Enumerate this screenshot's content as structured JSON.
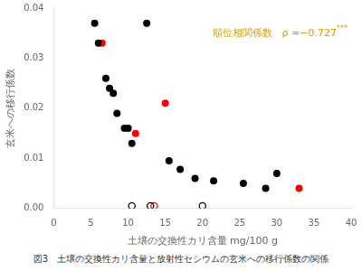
{
  "chart_data": {
    "type": "scatter",
    "xlabel": "土壌の交換性カリ含量 mg/100 g",
    "ylabel": "玄米への移行係数",
    "caption": "図3　土壌の交換性カリ含量と放射性セシウムの玄米への移行係数の関係",
    "annotations": [
      {
        "text": "順位相関係数　ρ =−0.727",
        "superscript": "***",
        "color": "#d4a000"
      }
    ],
    "series": [
      {
        "color": "#000000",
        "marker": "circle",
        "x": [
          5.5,
          6.0,
          7.0,
          7.5,
          8.0,
          8.5,
          9.5,
          10.0,
          10.5,
          12.5,
          15.5,
          17.0,
          19.0,
          21.5,
          25.5,
          28.5,
          30.0
        ],
        "values": [
          0.037,
          0.033,
          0.026,
          0.024,
          0.023,
          0.019,
          0.016,
          0.016,
          0.013,
          0.037,
          0.0095,
          0.0078,
          0.006,
          0.0055,
          0.005,
          0.004,
          0.007
        ]
      },
      {
        "color": "#ff0000",
        "marker": "circle",
        "x": [
          6.5,
          11.0,
          15.0,
          33.0
        ],
        "values": [
          0.033,
          0.015,
          0.021,
          0.004
        ]
      },
      {
        "color": "#000000",
        "marker": "open_circle",
        "x": [
          10.5,
          13.0,
          20.0
        ],
        "values": [
          0.0005,
          0.0005,
          0.0005
        ]
      },
      {
        "color": "#ff0000",
        "marker": "open_circle",
        "x": [
          13.5
        ],
        "values": [
          0.0005
        ]
      }
    ],
    "xlim": [
      0,
      40
    ],
    "ylim": [
      0,
      0.04
    ],
    "xticks": [
      0,
      5,
      10,
      15,
      20,
      25,
      30,
      35,
      40
    ],
    "yticks": [
      {
        "value": 0,
        "label": "0.00"
      },
      0.01,
      0.02,
      0.03,
      0.04
    ],
    "grid": false,
    "bg_color": "#ffffff"
  }
}
